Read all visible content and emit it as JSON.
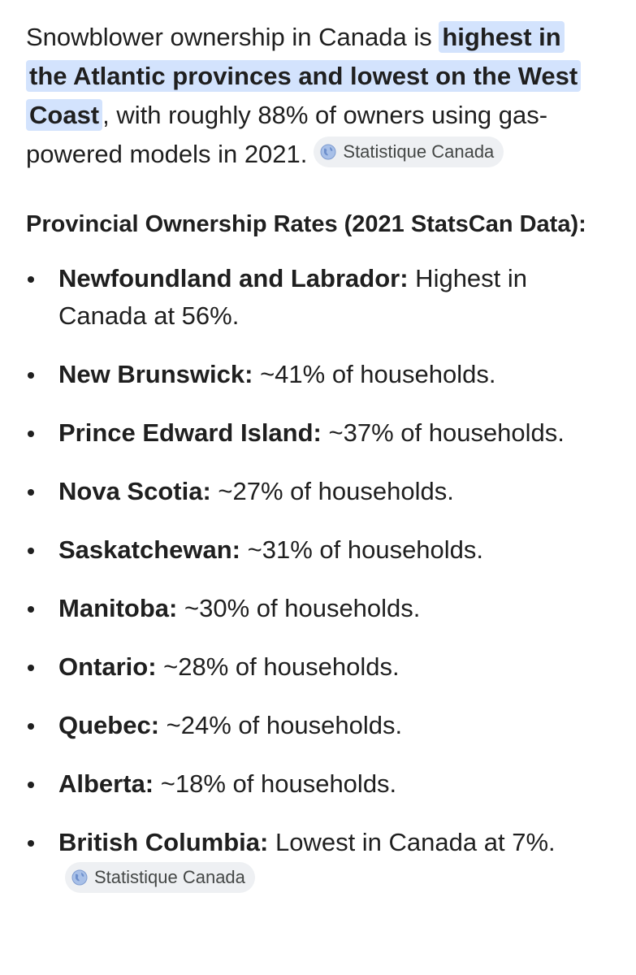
{
  "intro": {
    "before": "Snowblower ownership in Canada is ",
    "highlight": "highest in the Atlantic provinces and lowest on the West Coast",
    "after": ", with roughly 88% of owners using gas-powered models in 2021.",
    "source_chip": "Statistique Canada"
  },
  "section_title": "Provincial Ownership Rates (2021 StatsCan Data):",
  "provinces": [
    {
      "name": "Newfoundland and Labrador:",
      "detail": " Highest in Canada at 56%."
    },
    {
      "name": "New Brunswick:",
      "detail": " ~41% of households."
    },
    {
      "name": "Prince Edward Island:",
      "detail": " ~37% of households."
    },
    {
      "name": "Nova Scotia:",
      "detail": " ~27% of households."
    },
    {
      "name": "Saskatchewan:",
      "detail": " ~31% of households."
    },
    {
      "name": "Manitoba:",
      "detail": " ~30% of households."
    },
    {
      "name": "Ontario:",
      "detail": " ~28% of households."
    },
    {
      "name": "Quebec:",
      "detail": " ~24% of households."
    },
    {
      "name": "Alberta:",
      "detail": " ~18% of households."
    },
    {
      "name": "British Columbia:",
      "detail": " Lowest in Canada at 7%.",
      "source_chip": "Statistique Canada"
    }
  ],
  "icons": {
    "source_icon": "globe-icon"
  },
  "colors": {
    "highlight_bg": "#d3e3fd",
    "chip_bg": "#eef0f3",
    "text": "#1f1f1f"
  }
}
